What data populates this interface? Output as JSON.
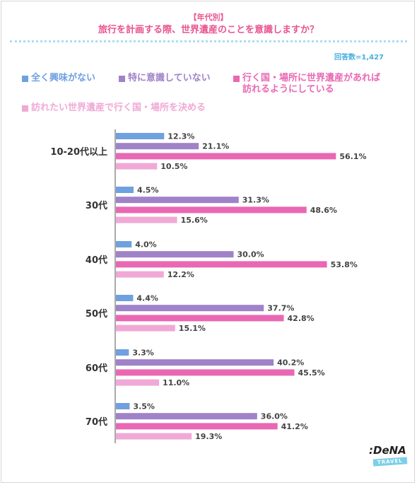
{
  "header": {
    "subtitle": "【年代別】",
    "title": "旅行を計画する際、世界遺産のことを意識しますか？",
    "respondents": "回答数=1,427"
  },
  "logo": {
    "main": ":DeNA",
    "sub": "TRAVEL"
  },
  "chart_data": {
    "type": "bar",
    "orientation": "horizontal",
    "categories": [
      "10-20代以上",
      "30代",
      "40代",
      "50代",
      "60代",
      "70代"
    ],
    "series": [
      {
        "name": "全く興味がない",
        "color": "#6fa0e0",
        "values": [
          12.3,
          4.5,
          4.0,
          4.4,
          3.3,
          3.5
        ]
      },
      {
        "name": "特に意識していない",
        "color": "#9f82c8",
        "values": [
          21.1,
          31.3,
          30.0,
          37.7,
          40.2,
          36.0
        ]
      },
      {
        "name": "行く国・場所に世界遺産があれば訪れるようにしている",
        "color": "#e968b3",
        "values": [
          56.1,
          48.6,
          53.8,
          42.8,
          45.5,
          41.2
        ]
      },
      {
        "name": "訪れたい世界遺産で行く国・場所を決める",
        "color": "#f0a9d6",
        "values": [
          10.5,
          15.6,
          12.2,
          15.1,
          11.0,
          19.3
        ]
      }
    ],
    "value_suffix": "%",
    "legend_position": "top"
  },
  "legend_lines": [
    [
      "全く興味がない"
    ],
    [
      "特に意識していない"
    ],
    [
      "行く国・場所に世界遺産があれば",
      "訪れるようにしている"
    ],
    [
      "訪れたい世界遺産で行く国・場所を決める"
    ]
  ]
}
